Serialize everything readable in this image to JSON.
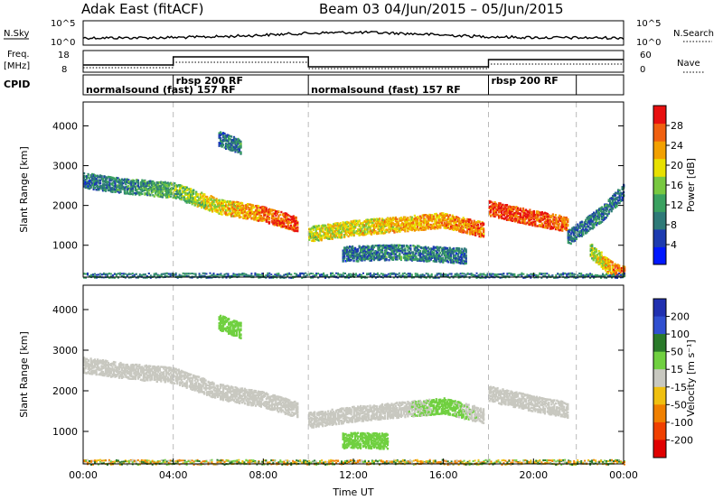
{
  "header": {
    "radar_title": "Adak East (fitACF)",
    "beam_date": "Beam 03  04/Jun/2015 – 05/Jun/2015"
  },
  "panels": {
    "nsky": {
      "left_label": "N.Sky",
      "right_label": "N.Search",
      "left_ticks": [
        "10^5",
        "10^0"
      ],
      "right_ticks": [
        "10^5",
        "10^0"
      ]
    },
    "freq": {
      "left_label_1": "Freq.",
      "left_label_2": "[MHz]",
      "right_label": "Nave",
      "left_ticks": [
        "18",
        "8"
      ],
      "right_ticks": [
        "60",
        "0"
      ]
    },
    "cpid": {
      "label": "CPID",
      "segments": [
        {
          "label": "normalsound (fast) 157 RF",
          "start_hr": 0.0,
          "end_hr": 4.0
        },
        {
          "label": "rbsp 200 RF",
          "start_hr": 4.0,
          "end_hr": 10.0
        },
        {
          "label": "normalsound (fast) 157 RF",
          "start_hr": 10.0,
          "end_hr": 18.0
        },
        {
          "label": "rbsp 200 RF",
          "start_hr": 18.0,
          "end_hr": 21.9
        }
      ]
    }
  },
  "xaxis": {
    "label": "Time UT",
    "ticks": [
      "00:00",
      "04:00",
      "08:00",
      "12:00",
      "16:00",
      "20:00",
      "00:00"
    ],
    "tick_hours": [
      0,
      4,
      8,
      12,
      16,
      20,
      24
    ]
  },
  "power_colorbar": {
    "label": "Power [dB]",
    "ticks": [
      "28",
      "24",
      "20",
      "16",
      "12",
      "8",
      "4"
    ]
  },
  "velocity_colorbar": {
    "label": "Velocity [m s⁻¹]",
    "ticks": [
      "200",
      "100",
      "50",
      "15",
      "-15",
      "-50",
      "-100",
      "-200"
    ]
  },
  "colors": {
    "power": [
      "#0018ff",
      "#1d3bb0",
      "#2e7a78",
      "#3aa160",
      "#78c840",
      "#e8e000",
      "#f2a000",
      "#f06010",
      "#e81010"
    ],
    "velocity": [
      "#2030b0",
      "#304fd0",
      "#2a7a2a",
      "#70d040",
      "#c8c8c0",
      "#f0c010",
      "#f08000",
      "#f04000",
      "#e00000"
    ]
  },
  "chart_data": [
    {
      "type": "heatmap",
      "name": "Power",
      "ylabel": "Slant Range [km]",
      "xlabel": "",
      "ylim": [
        200,
        4600
      ],
      "yticks": [
        1000,
        2000,
        3000,
        4000
      ],
      "xlim": [
        0,
        24
      ],
      "colorbar": {
        "label": "Power [dB]",
        "range": [
          0,
          32
        ],
        "ticks": [
          4,
          8,
          12,
          16,
          20,
          24,
          28
        ]
      },
      "bands": [
        {
          "t": [
            0.0,
            2.0,
            4.0,
            6.0,
            8.0,
            9.5
          ],
          "r": [
            2650,
            2500,
            2400,
            2000,
            1800,
            1550
          ],
          "power": [
            8,
            10,
            14,
            20,
            26,
            28
          ]
        },
        {
          "t": [
            10.0,
            12.0,
            14.0,
            16.0,
            17.8
          ],
          "r": [
            1300,
            1450,
            1550,
            1650,
            1400
          ],
          "power": [
            18,
            20,
            22,
            24,
            26
          ]
        },
        {
          "t": [
            18.0,
            20.0,
            21.5
          ],
          "r": [
            1950,
            1700,
            1550
          ],
          "power": [
            28,
            28,
            26
          ]
        },
        {
          "t": [
            11.5,
            14.0,
            17.0
          ],
          "r": [
            800,
            850,
            750
          ],
          "power": [
            8,
            10,
            8
          ]
        },
        {
          "t": [
            21.5,
            23.0,
            24.0
          ],
          "r": [
            1200,
            1800,
            2400
          ],
          "power": [
            8,
            10,
            8
          ]
        },
        {
          "t": [
            22.5,
            23.5,
            24.0
          ],
          "r": [
            900,
            400,
            300
          ],
          "power": [
            16,
            24,
            28
          ]
        },
        {
          "t": [
            6.0,
            7.0
          ],
          "r": [
            3700,
            3500
          ],
          "power": [
            8,
            10
          ]
        }
      ]
    },
    {
      "type": "heatmap",
      "name": "Velocity",
      "ylabel": "Slant Range [km]",
      "xlabel": "Time UT",
      "ylim": [
        200,
        4600
      ],
      "yticks": [
        1000,
        2000,
        3000,
        4000
      ],
      "xlim": [
        0,
        24
      ],
      "colorbar": {
        "label": "Velocity [m s⁻¹]",
        "range": [
          -250,
          250
        ],
        "ticks": [
          200,
          100,
          50,
          15,
          -15,
          -50,
          -100,
          -200
        ]
      },
      "bands": [
        {
          "t": [
            0.0,
            2.0,
            4.0,
            6.0,
            8.0,
            9.5
          ],
          "r": [
            2650,
            2500,
            2400,
            2000,
            1800,
            1550
          ],
          "velocity": [
            0,
            0,
            0,
            0,
            0,
            0
          ]
        },
        {
          "t": [
            10.0,
            12.0,
            14.0,
            16.0,
            17.8
          ],
          "r": [
            1300,
            1450,
            1550,
            1650,
            1400
          ],
          "velocity": [
            0,
            0,
            0,
            30,
            0
          ]
        },
        {
          "t": [
            18.0,
            20.0,
            21.5
          ],
          "r": [
            1950,
            1700,
            1550
          ],
          "velocity": [
            0,
            0,
            0
          ]
        },
        {
          "t": [
            11.5,
            12.5,
            13.5
          ],
          "r": [
            800,
            800,
            780
          ],
          "velocity": [
            35,
            40,
            35
          ]
        },
        {
          "t": [
            6.0,
            7.0
          ],
          "r": [
            3700,
            3500
          ],
          "velocity": [
            40,
            30
          ]
        }
      ]
    }
  ]
}
